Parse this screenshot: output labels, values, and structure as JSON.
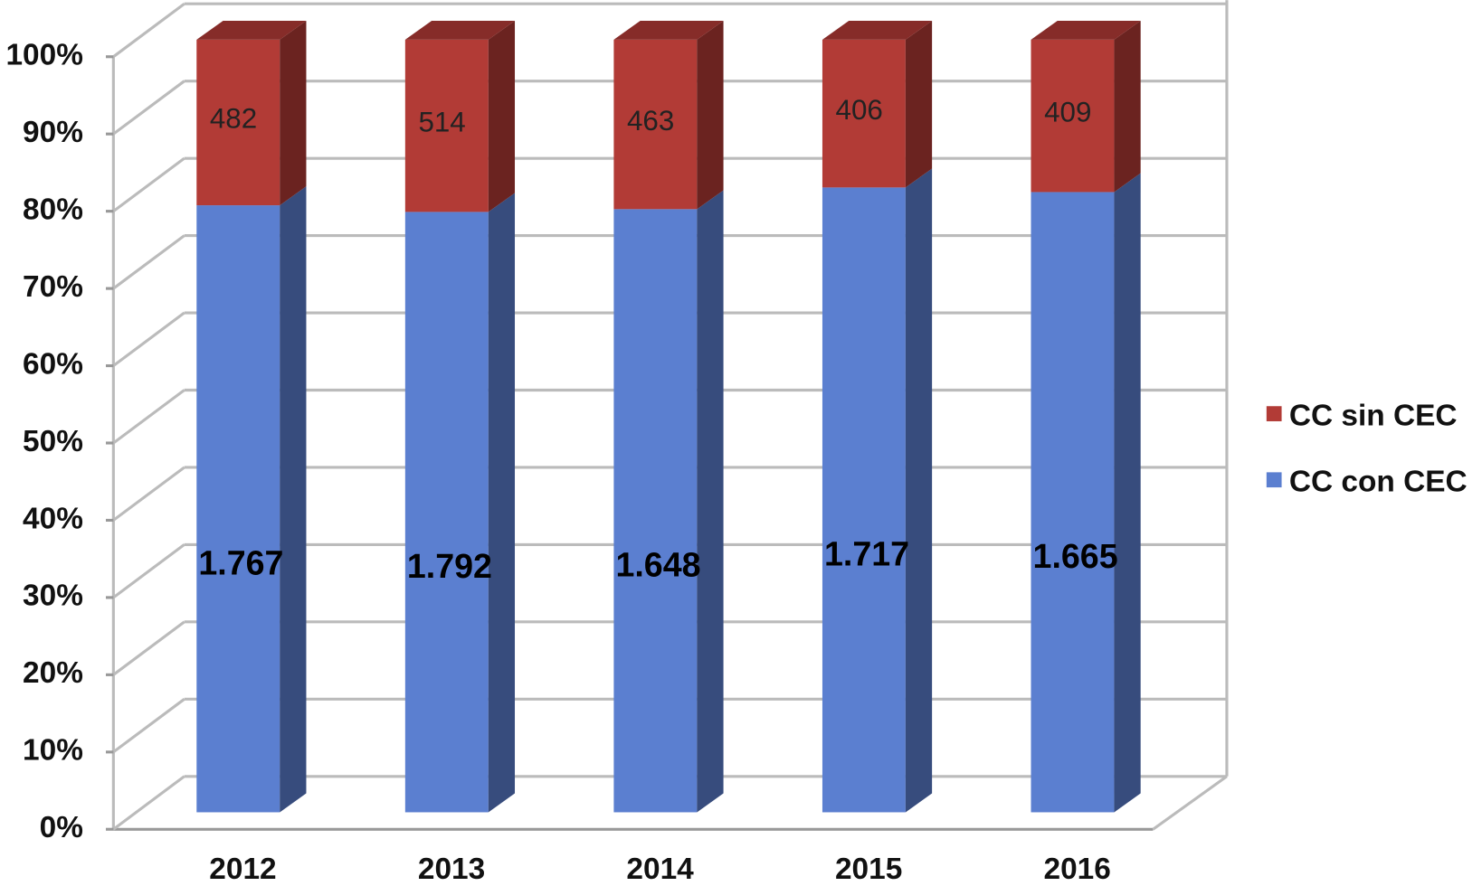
{
  "chart_data": {
    "type": "bar",
    "stacked": "percent",
    "categories": [
      "2012",
      "2013",
      "2014",
      "2015",
      "2016"
    ],
    "series": [
      {
        "name": "CC con CEC",
        "color": "#5b7fd0",
        "values": [
          1767,
          1792,
          1648,
          1717,
          1665
        ],
        "value_labels": [
          "1.767",
          "1.792",
          "1.648",
          "1.717",
          "1.665"
        ]
      },
      {
        "name": "CC sin CEC",
        "color": "#b23b36",
        "values": [
          482,
          514,
          463,
          406,
          409
        ]
      }
    ],
    "ylim": [
      0,
      100
    ],
    "yticks": [
      {
        "value": 0,
        "label": "0%"
      },
      {
        "value": 10,
        "label": "10%"
      },
      {
        "value": 20,
        "label": "20%"
      },
      {
        "value": 30,
        "label": "30%"
      },
      {
        "value": 40,
        "label": "40%"
      },
      {
        "value": 50,
        "label": "50%"
      },
      {
        "value": 60,
        "label": "60%"
      },
      {
        "value": 70,
        "label": "70%"
      },
      {
        "value": 80,
        "label": "80%"
      },
      {
        "value": 90,
        "label": "90%"
      },
      {
        "value": 100,
        "label": "100%"
      }
    ],
    "grid": true,
    "legend": "right"
  }
}
